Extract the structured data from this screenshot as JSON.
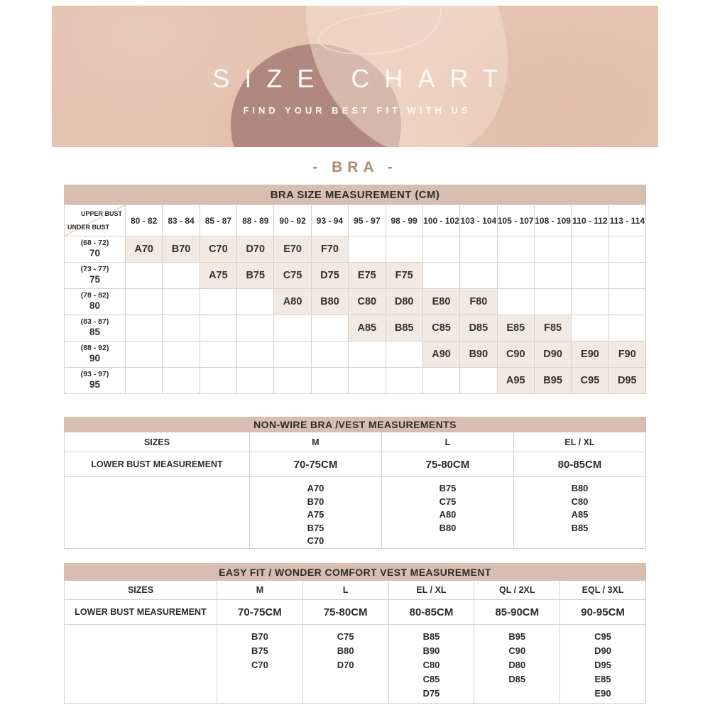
{
  "banner": {
    "title": "SIZE CHART",
    "subtitle": "FIND YOUR BEST FIT WITH US"
  },
  "section": {
    "title": "- BRA -"
  },
  "colors": {
    "banner_bg": "#e7c3b2",
    "blob": "#aa8178",
    "oval": "#f6e0d0",
    "band_bg": "#d7beb0",
    "cell_fill": "#f2e9e2",
    "border": "#dbd0c8",
    "text": "#2e2b28",
    "accent": "#ac8a7c"
  },
  "bra_table": {
    "title": "BRA SIZE MEASUREMENT (CM)",
    "corner_top": "UPPER BUST",
    "corner_bottom": "UNDER BUST",
    "columns": [
      "80 - 82",
      "83 - 84",
      "85 - 87",
      "88 - 89",
      "90 - 92",
      "93 - 94",
      "95 - 97",
      "98 - 99",
      "100 - 102",
      "103 - 104",
      "105 - 107",
      "108 - 109",
      "110 - 112",
      "113 - 114"
    ],
    "rows": [
      {
        "range": "(68 - 72)",
        "value": "70",
        "start": 0,
        "sizes": [
          "A70",
          "B70",
          "C70",
          "D70",
          "E70",
          "F70"
        ]
      },
      {
        "range": "(73 - 77)",
        "value": "75",
        "start": 2,
        "sizes": [
          "A75",
          "B75",
          "C75",
          "D75",
          "E75",
          "F75"
        ]
      },
      {
        "range": "(78 - 82)",
        "value": "80",
        "start": 4,
        "sizes": [
          "A80",
          "B80",
          "C80",
          "D80",
          "E80",
          "F80"
        ]
      },
      {
        "range": "(83 - 87)",
        "value": "85",
        "start": 6,
        "sizes": [
          "A85",
          "B85",
          "C85",
          "D85",
          "E85",
          "F85"
        ]
      },
      {
        "range": "(88 - 92)",
        "value": "90",
        "start": 8,
        "sizes": [
          "A90",
          "B90",
          "C90",
          "D90",
          "E90",
          "F90"
        ]
      },
      {
        "range": "(93 - 97)",
        "value": "95",
        "start": 10,
        "sizes": [
          "A95",
          "B95",
          "C95",
          "D95"
        ]
      }
    ]
  },
  "nonwire_table": {
    "title": "NON-WIRE BRA /VEST MEASUREMENTS",
    "labels": {
      "sizes": "SIZES",
      "lower_bust": "LOWER BUST MEASUREMENT"
    },
    "columns": [
      {
        "size": "M",
        "range": "70-75CM",
        "items": [
          "A70",
          "B70",
          "A75",
          "B75",
          "C70"
        ]
      },
      {
        "size": "L",
        "range": "75-80CM",
        "items": [
          "B75",
          "C75",
          "A80",
          "B80"
        ]
      },
      {
        "size": "EL / XL",
        "range": "80-85CM",
        "items": [
          "B80",
          "C80",
          "A85",
          "B85"
        ]
      }
    ]
  },
  "easyfit_table": {
    "title": "EASY FIT / WONDER COMFORT VEST MEASUREMENT",
    "labels": {
      "sizes": "SIZES",
      "lower_bust": "LOWER BUST MEASUREMENT"
    },
    "columns": [
      {
        "size": "M",
        "range": "70-75CM",
        "items": [
          "B70",
          "B75",
          "C70"
        ]
      },
      {
        "size": "L",
        "range": "75-80CM",
        "items": [
          "C75",
          "B80",
          "D70"
        ]
      },
      {
        "size": "EL / XL",
        "range": "80-85CM",
        "items": [
          "B85",
          "B90",
          "C80",
          "C85",
          "D75"
        ]
      },
      {
        "size": "QL / 2XL",
        "range": "85-90CM",
        "items": [
          "B95",
          "C90",
          "D80",
          "D85"
        ]
      },
      {
        "size": "EQL / 3XL",
        "range": "90-95CM",
        "items": [
          "C95",
          "D90",
          "D95",
          "E85",
          "E90"
        ]
      }
    ]
  }
}
